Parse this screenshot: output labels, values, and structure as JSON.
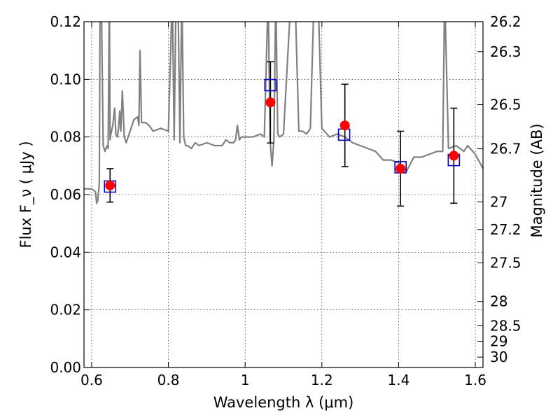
{
  "chart_data": {
    "type": "scatter",
    "xlabel": "Wavelength  λ (μm)",
    "ylabel": "Flux  F_ν  ( μJy )",
    "ylabel_right": "Magnitude (AB)",
    "xlim": [
      0.58,
      1.62
    ],
    "ylim": [
      0.0,
      0.12
    ],
    "grid": true,
    "x_ticks": [
      {
        "value": 0.6,
        "label": "0.6"
      },
      {
        "value": 0.8,
        "label": "0.8"
      },
      {
        "value": 1.0,
        "label": "1"
      },
      {
        "value": 1.2,
        "label": "1.2"
      },
      {
        "value": 1.4,
        "label": "1.4"
      },
      {
        "value": 1.6,
        "label": "1.6"
      }
    ],
    "y_ticks": [
      {
        "value": 0.0,
        "label": "0.00"
      },
      {
        "value": 0.02,
        "label": "0.02"
      },
      {
        "value": 0.04,
        "label": "0.04"
      },
      {
        "value": 0.06,
        "label": "0.06"
      },
      {
        "value": 0.08,
        "label": "0.08"
      },
      {
        "value": 0.1,
        "label": "0.10"
      },
      {
        "value": 0.12,
        "label": "0.12"
      }
    ],
    "right_ticks": [
      {
        "flux": 0.12,
        "label": "26.2"
      },
      {
        "flux": 0.1096,
        "label": "26.3"
      },
      {
        "flux": 0.0912,
        "label": "26.5"
      },
      {
        "flux": 0.0759,
        "label": "26.7"
      },
      {
        "flux": 0.0575,
        "label": "27"
      },
      {
        "flux": 0.0479,
        "label": "27.2"
      },
      {
        "flux": 0.0363,
        "label": "27.5"
      },
      {
        "flux": 0.0229,
        "label": "28"
      },
      {
        "flux": 0.0145,
        "label": "28.5"
      },
      {
        "flux": 0.0091,
        "label": "29"
      },
      {
        "flux": 0.0036,
        "label": "30"
      }
    ],
    "colors": {
      "spectrum": "#808080",
      "observed": "#ff0000",
      "model": "#0000cc",
      "errorbar": "#000000",
      "grid": "#000000"
    },
    "series": [
      {
        "kind": "spectrum",
        "x": [
          0.58,
          0.6,
          0.61,
          0.613,
          0.616,
          0.62,
          0.622,
          0.625,
          0.63,
          0.635,
          0.64,
          0.643,
          0.646,
          0.648,
          0.65,
          0.655,
          0.66,
          0.663,
          0.667,
          0.67,
          0.673,
          0.676,
          0.68,
          0.685,
          0.69,
          0.7,
          0.71,
          0.72,
          0.723,
          0.726,
          0.73,
          0.74,
          0.75,
          0.76,
          0.78,
          0.8,
          0.81,
          0.815,
          0.82,
          0.825,
          0.83,
          0.835,
          0.84,
          0.845,
          0.85,
          0.86,
          0.87,
          0.88,
          0.9,
          0.92,
          0.94,
          0.95,
          0.96,
          0.97,
          0.975,
          0.98,
          0.985,
          0.99,
          1.0,
          1.02,
          1.04,
          1.05,
          1.06,
          1.065,
          1.07,
          1.075,
          1.08,
          1.085,
          1.09,
          1.1,
          1.12,
          1.13,
          1.14,
          1.15,
          1.16,
          1.17,
          1.18,
          1.19,
          1.2,
          1.22,
          1.24,
          1.26,
          1.28,
          1.3,
          1.32,
          1.34,
          1.36,
          1.38,
          1.4,
          1.42,
          1.44,
          1.46,
          1.48,
          1.5,
          1.515,
          1.52,
          1.53,
          1.55,
          1.57,
          1.58,
          1.6,
          1.62
        ],
        "y": [
          0.062,
          0.062,
          0.061,
          0.057,
          0.058,
          0.064,
          0.13,
          0.13,
          0.077,
          0.075,
          0.077,
          0.076,
          0.13,
          0.079,
          0.081,
          0.084,
          0.09,
          0.081,
          0.08,
          0.083,
          0.089,
          0.082,
          0.096,
          0.08,
          0.078,
          0.082,
          0.086,
          0.087,
          0.084,
          0.11,
          0.085,
          0.085,
          0.084,
          0.082,
          0.083,
          0.082,
          0.13,
          0.079,
          0.13,
          0.13,
          0.078,
          0.13,
          0.08,
          0.077,
          0.077,
          0.076,
          0.078,
          0.077,
          0.078,
          0.077,
          0.077,
          0.079,
          0.078,
          0.078,
          0.079,
          0.084,
          0.079,
          0.08,
          0.08,
          0.08,
          0.081,
          0.08,
          0.13,
          0.079,
          0.07,
          0.079,
          0.13,
          0.081,
          0.08,
          0.081,
          0.13,
          0.13,
          0.082,
          0.082,
          0.081,
          0.083,
          0.13,
          0.13,
          0.083,
          0.08,
          0.081,
          0.08,
          0.078,
          0.077,
          0.076,
          0.075,
          0.072,
          0.072,
          0.071,
          0.068,
          0.073,
          0.073,
          0.074,
          0.075,
          0.075,
          0.13,
          0.076,
          0.077,
          0.075,
          0.077,
          0.074,
          0.069
        ]
      },
      {
        "kind": "model",
        "marker": "open-square",
        "x": [
          0.648,
          1.066,
          1.258,
          1.405,
          1.544
        ],
        "y": [
          0.0628,
          0.098,
          0.0808,
          0.0695,
          0.072
        ]
      },
      {
        "kind": "observed",
        "marker": "filled-circle",
        "x": [
          0.648,
          1.066,
          1.26,
          1.405,
          1.544
        ],
        "y": [
          0.0632,
          0.092,
          0.084,
          0.069,
          0.0735
        ],
        "yerr": [
          0.0058,
          0.0141,
          0.0143,
          0.013,
          0.0165
        ]
      }
    ]
  }
}
